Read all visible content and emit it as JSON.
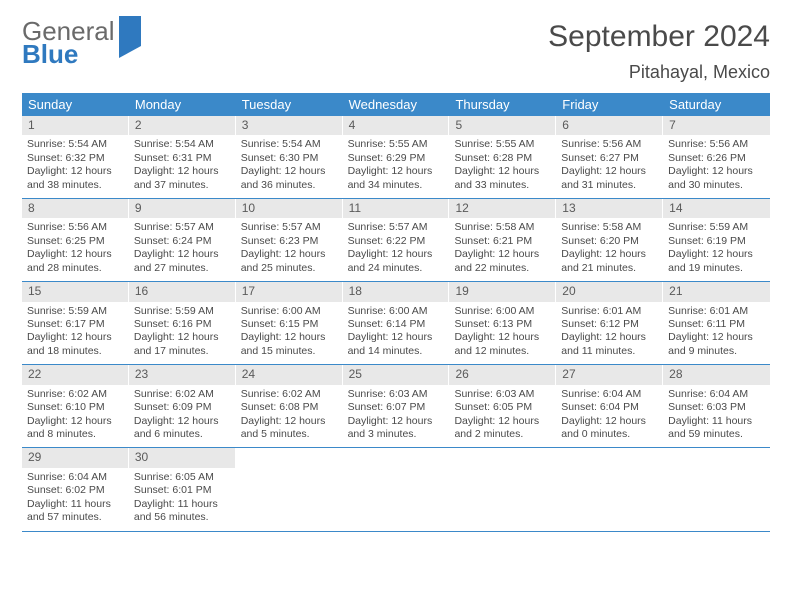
{
  "brand": {
    "text1": "General",
    "text2": "Blue"
  },
  "title": "September 2024",
  "location": "Pitahayal, Mexico",
  "colors": {
    "header_bg": "#3b89c9",
    "header_text": "#ffffff",
    "daynum_bg": "#e8e8e8",
    "border": "#3b89c9",
    "text": "#4a4a4a",
    "brand_blue": "#2f79bf"
  },
  "day_names": [
    "Sunday",
    "Monday",
    "Tuesday",
    "Wednesday",
    "Thursday",
    "Friday",
    "Saturday"
  ],
  "weeks": [
    [
      {
        "n": "1",
        "sr": "Sunrise: 5:54 AM",
        "ss": "Sunset: 6:32 PM",
        "d1": "Daylight: 12 hours",
        "d2": "and 38 minutes."
      },
      {
        "n": "2",
        "sr": "Sunrise: 5:54 AM",
        "ss": "Sunset: 6:31 PM",
        "d1": "Daylight: 12 hours",
        "d2": "and 37 minutes."
      },
      {
        "n": "3",
        "sr": "Sunrise: 5:54 AM",
        "ss": "Sunset: 6:30 PM",
        "d1": "Daylight: 12 hours",
        "d2": "and 36 minutes."
      },
      {
        "n": "4",
        "sr": "Sunrise: 5:55 AM",
        "ss": "Sunset: 6:29 PM",
        "d1": "Daylight: 12 hours",
        "d2": "and 34 minutes."
      },
      {
        "n": "5",
        "sr": "Sunrise: 5:55 AM",
        "ss": "Sunset: 6:28 PM",
        "d1": "Daylight: 12 hours",
        "d2": "and 33 minutes."
      },
      {
        "n": "6",
        "sr": "Sunrise: 5:56 AM",
        "ss": "Sunset: 6:27 PM",
        "d1": "Daylight: 12 hours",
        "d2": "and 31 minutes."
      },
      {
        "n": "7",
        "sr": "Sunrise: 5:56 AM",
        "ss": "Sunset: 6:26 PM",
        "d1": "Daylight: 12 hours",
        "d2": "and 30 minutes."
      }
    ],
    [
      {
        "n": "8",
        "sr": "Sunrise: 5:56 AM",
        "ss": "Sunset: 6:25 PM",
        "d1": "Daylight: 12 hours",
        "d2": "and 28 minutes."
      },
      {
        "n": "9",
        "sr": "Sunrise: 5:57 AM",
        "ss": "Sunset: 6:24 PM",
        "d1": "Daylight: 12 hours",
        "d2": "and 27 minutes."
      },
      {
        "n": "10",
        "sr": "Sunrise: 5:57 AM",
        "ss": "Sunset: 6:23 PM",
        "d1": "Daylight: 12 hours",
        "d2": "and 25 minutes."
      },
      {
        "n": "11",
        "sr": "Sunrise: 5:57 AM",
        "ss": "Sunset: 6:22 PM",
        "d1": "Daylight: 12 hours",
        "d2": "and 24 minutes."
      },
      {
        "n": "12",
        "sr": "Sunrise: 5:58 AM",
        "ss": "Sunset: 6:21 PM",
        "d1": "Daylight: 12 hours",
        "d2": "and 22 minutes."
      },
      {
        "n": "13",
        "sr": "Sunrise: 5:58 AM",
        "ss": "Sunset: 6:20 PM",
        "d1": "Daylight: 12 hours",
        "d2": "and 21 minutes."
      },
      {
        "n": "14",
        "sr": "Sunrise: 5:59 AM",
        "ss": "Sunset: 6:19 PM",
        "d1": "Daylight: 12 hours",
        "d2": "and 19 minutes."
      }
    ],
    [
      {
        "n": "15",
        "sr": "Sunrise: 5:59 AM",
        "ss": "Sunset: 6:17 PM",
        "d1": "Daylight: 12 hours",
        "d2": "and 18 minutes."
      },
      {
        "n": "16",
        "sr": "Sunrise: 5:59 AM",
        "ss": "Sunset: 6:16 PM",
        "d1": "Daylight: 12 hours",
        "d2": "and 17 minutes."
      },
      {
        "n": "17",
        "sr": "Sunrise: 6:00 AM",
        "ss": "Sunset: 6:15 PM",
        "d1": "Daylight: 12 hours",
        "d2": "and 15 minutes."
      },
      {
        "n": "18",
        "sr": "Sunrise: 6:00 AM",
        "ss": "Sunset: 6:14 PM",
        "d1": "Daylight: 12 hours",
        "d2": "and 14 minutes."
      },
      {
        "n": "19",
        "sr": "Sunrise: 6:00 AM",
        "ss": "Sunset: 6:13 PM",
        "d1": "Daylight: 12 hours",
        "d2": "and 12 minutes."
      },
      {
        "n": "20",
        "sr": "Sunrise: 6:01 AM",
        "ss": "Sunset: 6:12 PM",
        "d1": "Daylight: 12 hours",
        "d2": "and 11 minutes."
      },
      {
        "n": "21",
        "sr": "Sunrise: 6:01 AM",
        "ss": "Sunset: 6:11 PM",
        "d1": "Daylight: 12 hours",
        "d2": "and 9 minutes."
      }
    ],
    [
      {
        "n": "22",
        "sr": "Sunrise: 6:02 AM",
        "ss": "Sunset: 6:10 PM",
        "d1": "Daylight: 12 hours",
        "d2": "and 8 minutes."
      },
      {
        "n": "23",
        "sr": "Sunrise: 6:02 AM",
        "ss": "Sunset: 6:09 PM",
        "d1": "Daylight: 12 hours",
        "d2": "and 6 minutes."
      },
      {
        "n": "24",
        "sr": "Sunrise: 6:02 AM",
        "ss": "Sunset: 6:08 PM",
        "d1": "Daylight: 12 hours",
        "d2": "and 5 minutes."
      },
      {
        "n": "25",
        "sr": "Sunrise: 6:03 AM",
        "ss": "Sunset: 6:07 PM",
        "d1": "Daylight: 12 hours",
        "d2": "and 3 minutes."
      },
      {
        "n": "26",
        "sr": "Sunrise: 6:03 AM",
        "ss": "Sunset: 6:05 PM",
        "d1": "Daylight: 12 hours",
        "d2": "and 2 minutes."
      },
      {
        "n": "27",
        "sr": "Sunrise: 6:04 AM",
        "ss": "Sunset: 6:04 PM",
        "d1": "Daylight: 12 hours",
        "d2": "and 0 minutes."
      },
      {
        "n": "28",
        "sr": "Sunrise: 6:04 AM",
        "ss": "Sunset: 6:03 PM",
        "d1": "Daylight: 11 hours",
        "d2": "and 59 minutes."
      }
    ],
    [
      {
        "n": "29",
        "sr": "Sunrise: 6:04 AM",
        "ss": "Sunset: 6:02 PM",
        "d1": "Daylight: 11 hours",
        "d2": "and 57 minutes."
      },
      {
        "n": "30",
        "sr": "Sunrise: 6:05 AM",
        "ss": "Sunset: 6:01 PM",
        "d1": "Daylight: 11 hours",
        "d2": "and 56 minutes."
      },
      null,
      null,
      null,
      null,
      null
    ]
  ]
}
